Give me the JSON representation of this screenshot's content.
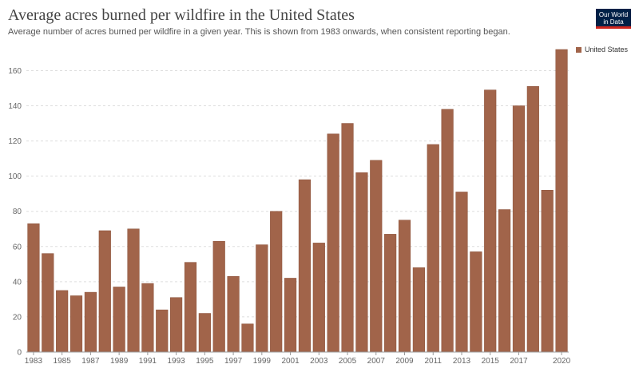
{
  "header": {
    "title": "Average acres burned per wildfire in the United States",
    "subtitle": "Average number of acres burned per wildfire in a given year. This is shown from 1983 onwards, when consistent reporting began.",
    "logo_line1": "Our World",
    "logo_line2": "in Data"
  },
  "colors": {
    "bar": "#a1644a",
    "bar_border": "#8a5038",
    "logo_bg": "#002147",
    "logo_accent": "#ce261e"
  },
  "legend": {
    "label": "United States",
    "placement": "top-right"
  },
  "chart_data": {
    "type": "bar",
    "title": "Average acres burned per wildfire in the United States",
    "subtitle": "Average number of acres burned per wildfire in a given year. This is shown from 1983 onwards, when consistent reporting began.",
    "xlabel": "",
    "ylabel": "",
    "ylim": [
      0,
      172
    ],
    "yticks": [
      0,
      20,
      40,
      60,
      80,
      100,
      120,
      140,
      160
    ],
    "xtick_labels": [
      "1983",
      "1985",
      "1987",
      "1989",
      "1991",
      "1993",
      "1995",
      "1997",
      "1999",
      "2001",
      "2003",
      "2005",
      "2007",
      "2009",
      "2011",
      "2013",
      "2015",
      "2017",
      "2020"
    ],
    "grid": "horizontal dashed",
    "categories": [
      "1983",
      "1984",
      "1985",
      "1986",
      "1987",
      "1988",
      "1989",
      "1990",
      "1991",
      "1992",
      "1993",
      "1994",
      "1995",
      "1996",
      "1997",
      "1998",
      "1999",
      "2000",
      "2001",
      "2002",
      "2003",
      "2004",
      "2005",
      "2006",
      "2007",
      "2008",
      "2009",
      "2010",
      "2011",
      "2012",
      "2013",
      "2014",
      "2015",
      "2016",
      "2017",
      "2018",
      "2019",
      "2020"
    ],
    "series": [
      {
        "name": "United States",
        "values": [
          73,
          56,
          35,
          32,
          34,
          69,
          37,
          70,
          39,
          24,
          31,
          51,
          22,
          63,
          43,
          16,
          61,
          80,
          42,
          98,
          62,
          124,
          130,
          102,
          109,
          67,
          75,
          48,
          118,
          138,
          91,
          57,
          149,
          81,
          140,
          151,
          92,
          172
        ]
      }
    ]
  }
}
